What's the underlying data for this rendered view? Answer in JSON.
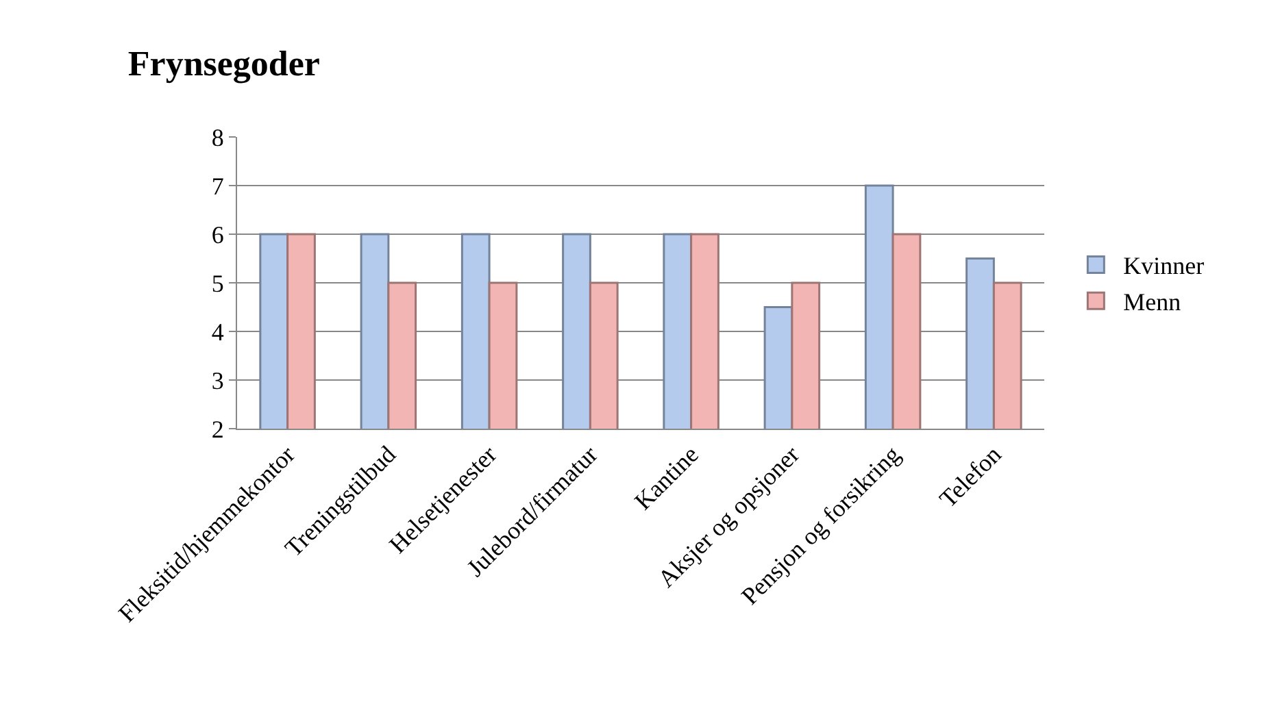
{
  "chart_data": {
    "type": "bar",
    "title": "Frynsegoder",
    "categories": [
      "Fleksitid/hjemmekontor",
      "Treningstilbud",
      "Helsetjenester",
      "Julebord/firmatur",
      "Kantine",
      "Aksjer og opsjoner",
      "Pensjon og forsikring",
      "Telefon"
    ],
    "series": [
      {
        "name": "Kvinner",
        "color": "#b4cbee",
        "values": [
          6,
          6,
          6,
          6,
          6,
          4.5,
          7,
          5.5
        ]
      },
      {
        "name": "Menn",
        "color": "#f2b5b4",
        "values": [
          6,
          5,
          5,
          5,
          6,
          5,
          6,
          5
        ]
      }
    ],
    "ylim": [
      2,
      8
    ],
    "yticks": [
      2,
      3,
      4,
      5,
      6,
      7,
      8
    ],
    "grid": "y",
    "legend": "right"
  }
}
